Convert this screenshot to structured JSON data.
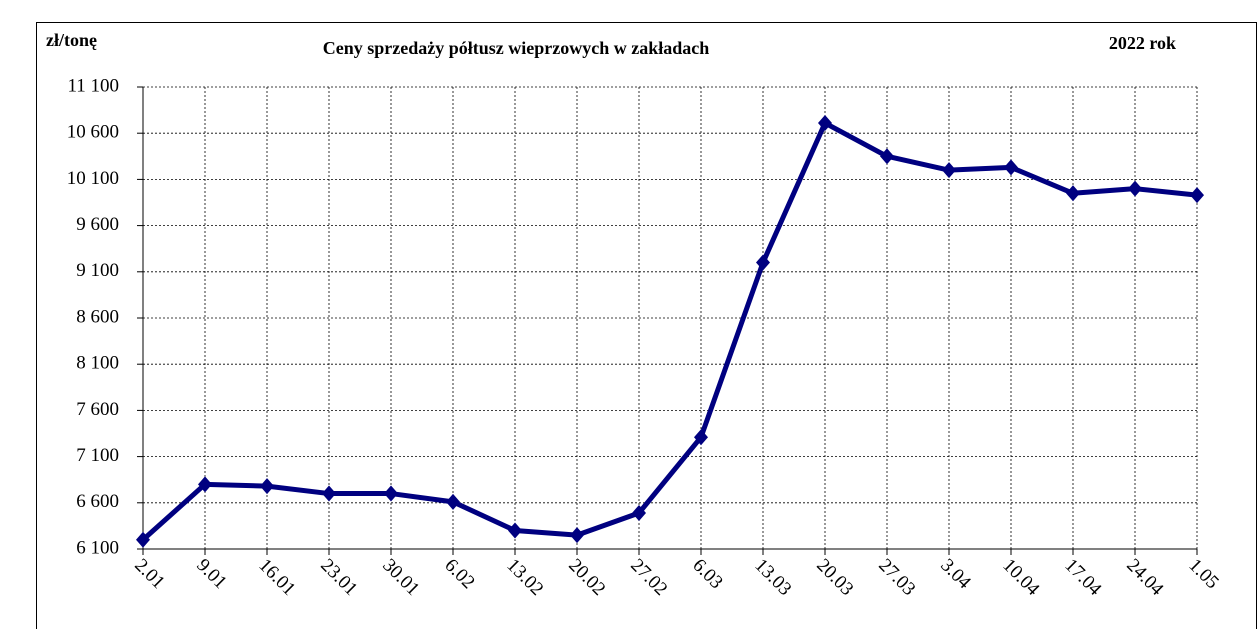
{
  "chart_data": {
    "type": "line",
    "title": "Ceny sprzedaży półtusz wieprzowych w zakładach",
    "y_label": "zł/tonę",
    "annotation": "2022 rok",
    "categories": [
      "2.01",
      "9.01",
      "16.01",
      "23.01",
      "30.01",
      "6.02",
      "13.02",
      "20.02",
      "27.02",
      "6.03",
      "13.03",
      "20.03",
      "27.03",
      "3.04",
      "10.04",
      "17.04",
      "24.04",
      "1.05"
    ],
    "series": [
      {
        "name": null,
        "color": "#000080",
        "values": [
          6200,
          6800,
          6780,
          6700,
          6700,
          6610,
          6300,
          6250,
          6490,
          7310,
          9200,
          10710,
          10350,
          10200,
          10230,
          9950,
          10000,
          9930
        ]
      }
    ],
    "ylim": [
      6100,
      11100
    ],
    "yticks": [
      {
        "value": 6100,
        "label": "6 100"
      },
      {
        "value": 6600,
        "label": "6 600"
      },
      {
        "value": 7100,
        "label": "7 100"
      },
      {
        "value": 7600,
        "label": "7 600"
      },
      {
        "value": 8100,
        "label": "8 100"
      },
      {
        "value": 8600,
        "label": "8 600"
      },
      {
        "value": 9100,
        "label": "9 100"
      },
      {
        "value": 9600,
        "label": "9 600"
      },
      {
        "value": 10100,
        "label": "10 100"
      },
      {
        "value": 10600,
        "label": "10 600"
      },
      {
        "value": 11100,
        "label": "11 100"
      }
    ],
    "grid": true
  }
}
